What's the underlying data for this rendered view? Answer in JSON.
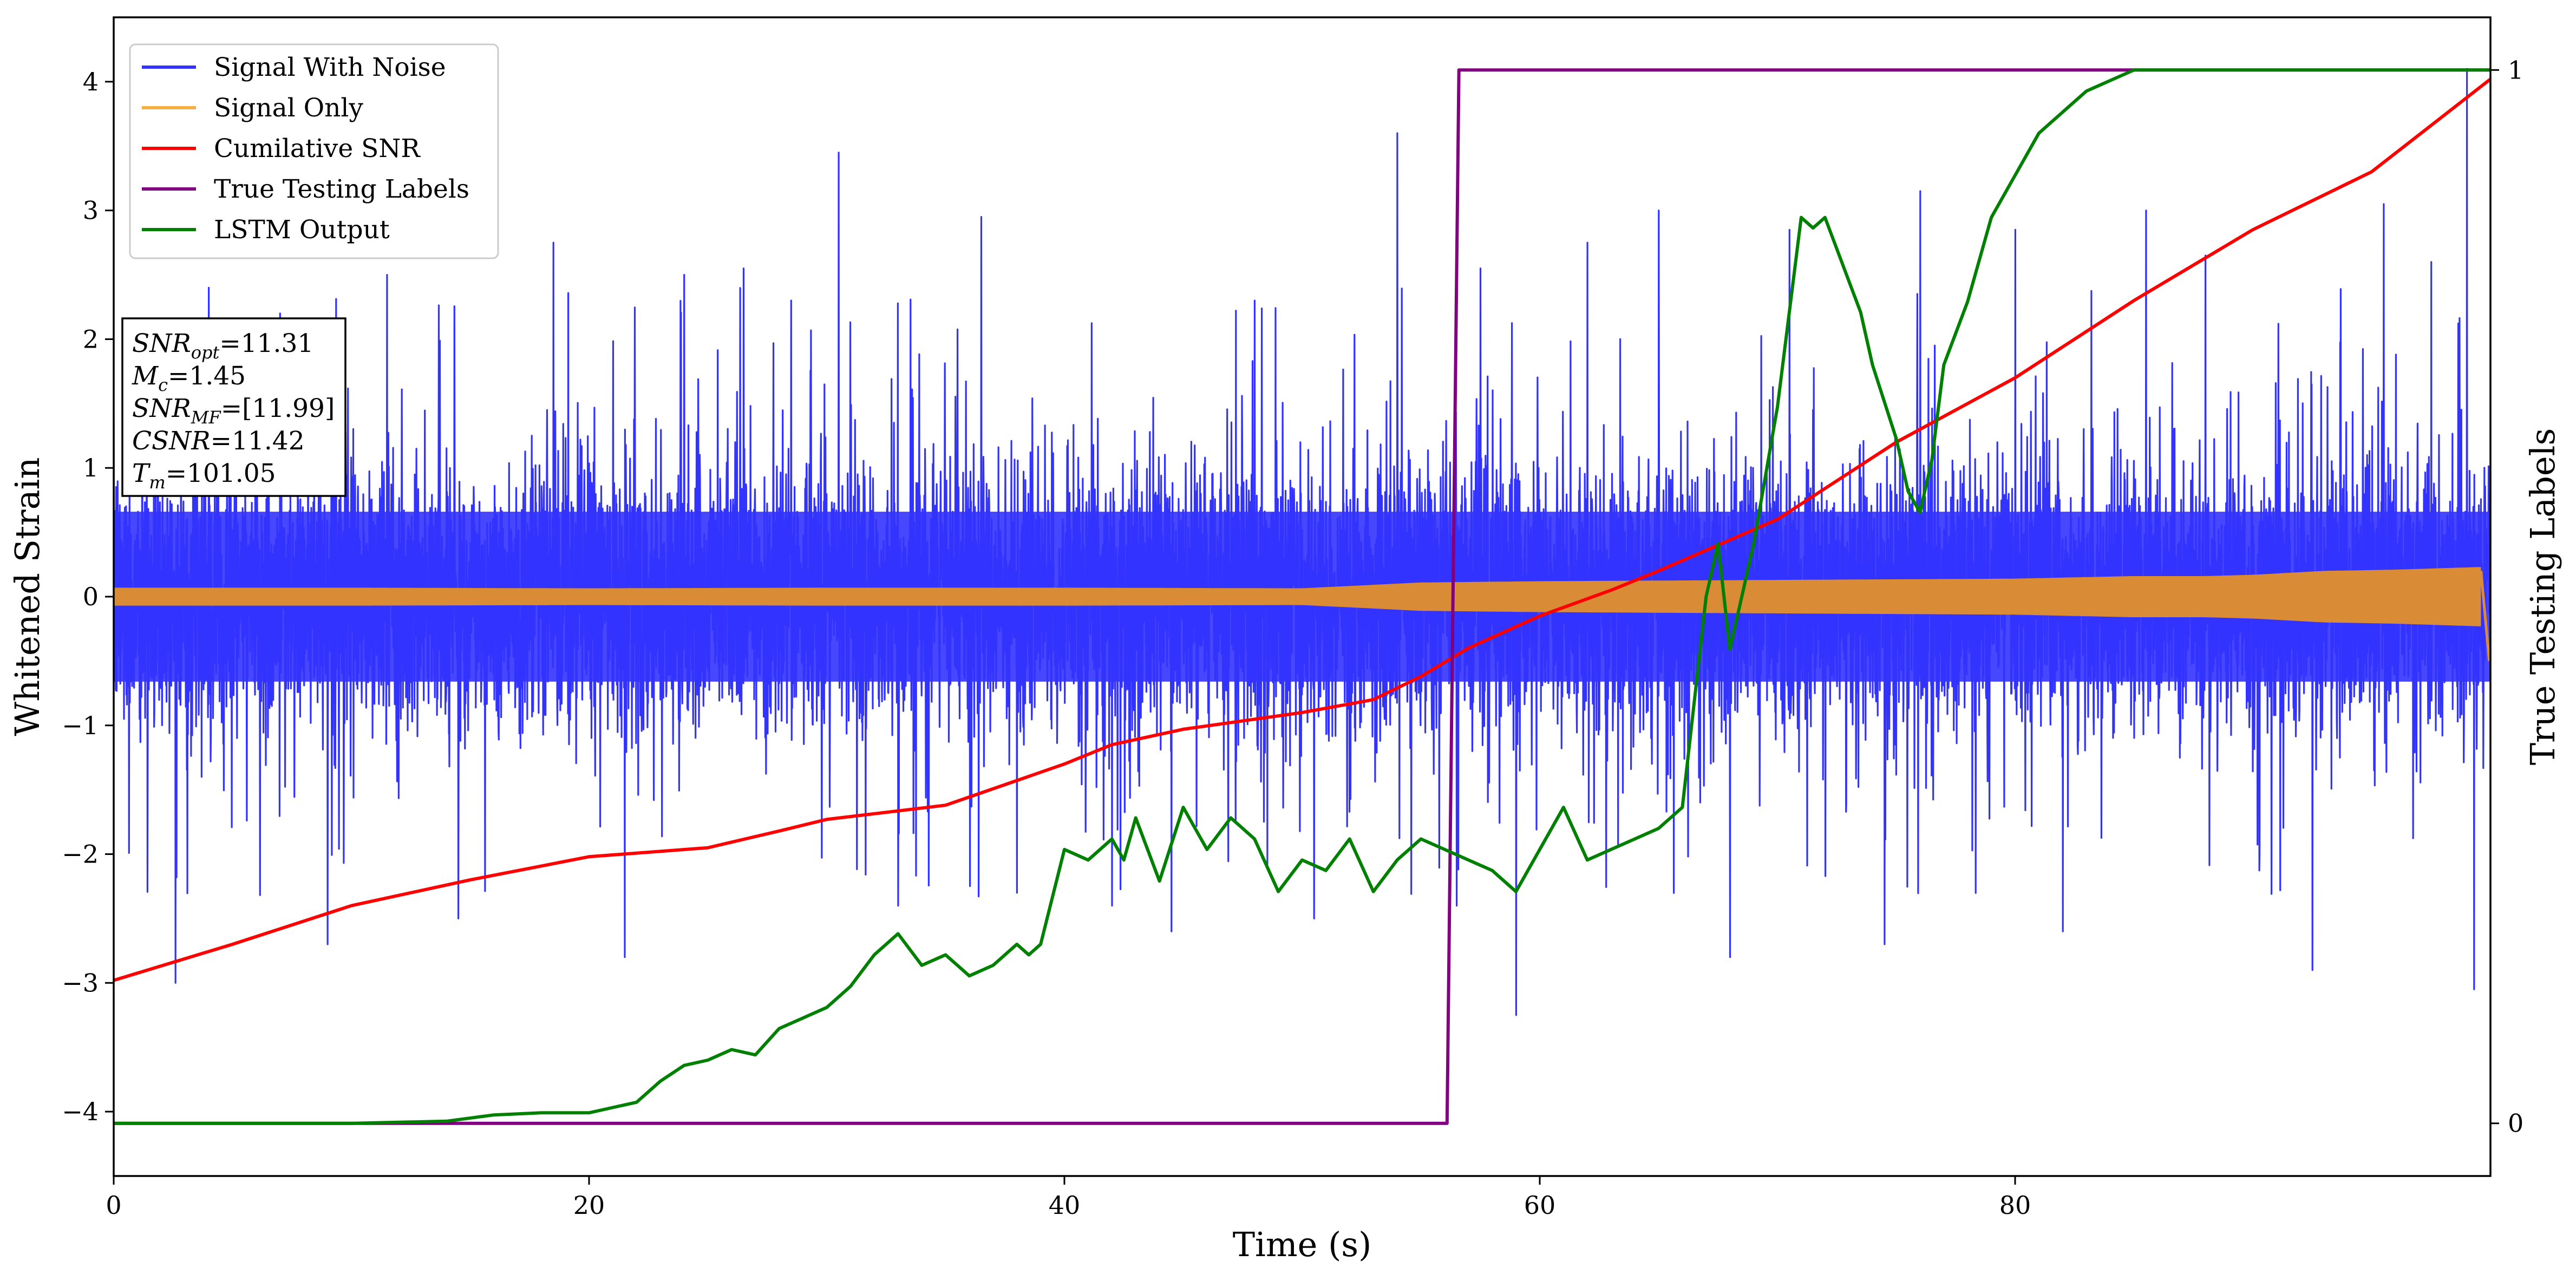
{
  "chart_data": {
    "type": "line",
    "xlabel": "Time (s)",
    "ylabel": "Whitened Strain",
    "y2label": "True Testing Labels",
    "xlim": [
      0,
      100
    ],
    "ylim": [
      -4.5,
      4.5
    ],
    "y2lim": [
      -0.05,
      1.05
    ],
    "xticks": [
      0,
      20,
      40,
      60,
      80
    ],
    "xtick_labels": [
      "0",
      "20",
      "40",
      "60",
      "80"
    ],
    "yticks": [
      -4,
      -3,
      -2,
      -1,
      0,
      1,
      2,
      3,
      4
    ],
    "ytick_labels": [
      "−4",
      "−3",
      "−2",
      "−1",
      "0",
      "1",
      "2",
      "3",
      "4"
    ],
    "y2ticks": [
      0,
      1
    ],
    "y2tick_labels": [
      "0",
      "1"
    ],
    "grid": false,
    "legend_position": "top-left",
    "colors": {
      "noise": "#3333ff",
      "signal": "#d98c35",
      "csnr": "#ff0000",
      "labels": "#800080",
      "lstm": "#008000"
    },
    "series": [
      {
        "name": "Signal With Noise",
        "axis": "left",
        "style": "dense-noise",
        "typical_range": [
          -1.2,
          1.2
        ],
        "peak_spikes": [
          [
            1.2,
            2.1
          ],
          [
            2.6,
            -3.0
          ],
          [
            4.0,
            2.4
          ],
          [
            7.0,
            2.2
          ],
          [
            9.0,
            -2.7
          ],
          [
            11.5,
            2.5
          ],
          [
            14.5,
            -2.5
          ],
          [
            18.5,
            2.75
          ],
          [
            21.5,
            -2.8
          ],
          [
            24.0,
            2.5
          ],
          [
            26.5,
            2.55
          ],
          [
            28.5,
            2.3
          ],
          [
            30.5,
            3.45
          ],
          [
            33.0,
            -2.4
          ],
          [
            36.5,
            2.95
          ],
          [
            38.0,
            -2.3
          ],
          [
            42.0,
            -2.4
          ],
          [
            44.5,
            -2.6
          ],
          [
            48.0,
            2.3
          ],
          [
            50.5,
            -2.5
          ],
          [
            54.0,
            3.6
          ],
          [
            56.5,
            -2.4
          ],
          [
            57.5,
            2.55
          ],
          [
            59.0,
            -3.25
          ],
          [
            62.0,
            2.75
          ],
          [
            65.0,
            3.0
          ],
          [
            68.0,
            -2.8
          ],
          [
            70.5,
            2.85
          ],
          [
            74.5,
            -2.7
          ],
          [
            76.0,
            3.15
          ],
          [
            80.0,
            2.85
          ],
          [
            82.0,
            -2.6
          ],
          [
            85.5,
            3.0
          ],
          [
            88.0,
            2.65
          ],
          [
            92.5,
            -2.9
          ],
          [
            95.5,
            3.05
          ],
          [
            97.5,
            2.6
          ],
          [
            99.0,
            4.1
          ],
          [
            99.3,
            -3.05
          ]
        ]
      },
      {
        "name": "Signal Only",
        "axis": "left",
        "style": "chirp-band",
        "envelope": [
          [
            0,
            0.07
          ],
          [
            10,
            0.07
          ],
          [
            20,
            0.065
          ],
          [
            30,
            0.07
          ],
          [
            40,
            0.07
          ],
          [
            50,
            0.065
          ],
          [
            55,
            0.11
          ],
          [
            60,
            0.12
          ],
          [
            70,
            0.13
          ],
          [
            80,
            0.14
          ],
          [
            85,
            0.16
          ],
          [
            88,
            0.16
          ],
          [
            90,
            0.17
          ],
          [
            93,
            0.2
          ],
          [
            96,
            0.21
          ],
          [
            99.5,
            0.23
          ],
          [
            100,
            0.23
          ]
        ],
        "end_value": -0.5
      },
      {
        "name": "Cumilative SNR",
        "axis": "left",
        "x": [
          0,
          5,
          10,
          15,
          20,
          25,
          28,
          30,
          35,
          40,
          42,
          45,
          50,
          53,
          55,
          57,
          60,
          63,
          65,
          70,
          75,
          80,
          85,
          90,
          95,
          100
        ],
        "y": [
          -2.98,
          -2.7,
          -2.4,
          -2.2,
          -2.02,
          -1.95,
          -1.82,
          -1.73,
          -1.62,
          -1.3,
          -1.15,
          -1.03,
          -0.9,
          -0.8,
          -0.62,
          -0.4,
          -0.15,
          0.05,
          0.2,
          0.6,
          1.2,
          1.7,
          2.3,
          2.85,
          3.3,
          4.02
        ]
      },
      {
        "name": "True Testing Labels",
        "axis": "right",
        "x": [
          0,
          56.1,
          56.6,
          100
        ],
        "y": [
          0,
          0,
          1,
          1
        ]
      },
      {
        "name": "LSTM Output",
        "axis": "right",
        "x": [
          0,
          10,
          14,
          16,
          18,
          20,
          21,
          22,
          23,
          24,
          25,
          26,
          27,
          28,
          29,
          30,
          31,
          32,
          33,
          34,
          35,
          36,
          37,
          38,
          38.5,
          39,
          40,
          41,
          42,
          42.5,
          43,
          44,
          45,
          46,
          47,
          48,
          49,
          50,
          51,
          52,
          53,
          54,
          55,
          56,
          57,
          58,
          59,
          60,
          61,
          62,
          63,
          64,
          65,
          66,
          67,
          67.5,
          68,
          68.5,
          69,
          70,
          71,
          71.5,
          72,
          72.5,
          73,
          73.5,
          74,
          75,
          75.5,
          76,
          76.5,
          77,
          78,
          79,
          80,
          81,
          82,
          83,
          84,
          85,
          86,
          90,
          100
        ],
        "y": [
          0,
          0,
          0.002,
          0.008,
          0.01,
          0.01,
          0.015,
          0.02,
          0.04,
          0.055,
          0.06,
          0.07,
          0.065,
          0.09,
          0.1,
          0.11,
          0.13,
          0.16,
          0.18,
          0.15,
          0.16,
          0.14,
          0.15,
          0.17,
          0.16,
          0.17,
          0.26,
          0.25,
          0.27,
          0.25,
          0.29,
          0.23,
          0.3,
          0.26,
          0.29,
          0.27,
          0.22,
          0.25,
          0.24,
          0.27,
          0.22,
          0.25,
          0.27,
          0.26,
          0.25,
          0.24,
          0.22,
          0.26,
          0.3,
          0.25,
          0.26,
          0.27,
          0.28,
          0.3,
          0.5,
          0.55,
          0.45,
          0.5,
          0.55,
          0.68,
          0.86,
          0.85,
          0.86,
          0.83,
          0.8,
          0.77,
          0.72,
          0.65,
          0.6,
          0.58,
          0.63,
          0.72,
          0.78,
          0.86,
          0.9,
          0.94,
          0.96,
          0.98,
          0.99,
          1.0,
          1.0,
          1.0,
          1.0
        ]
      }
    ],
    "annotation_lines": [
      {
        "var": "SNR",
        "sub": "opt",
        "value": "=11.31"
      },
      {
        "var": "M",
        "sub": "c",
        "value": "=1.45"
      },
      {
        "var": "SNR",
        "sub": "MF",
        "value": "=[11.99]"
      },
      {
        "var": "CSNR",
        "sub": "",
        "value": "=11.42"
      },
      {
        "var": "T",
        "sub": "m",
        "value": "=101.05"
      }
    ]
  }
}
